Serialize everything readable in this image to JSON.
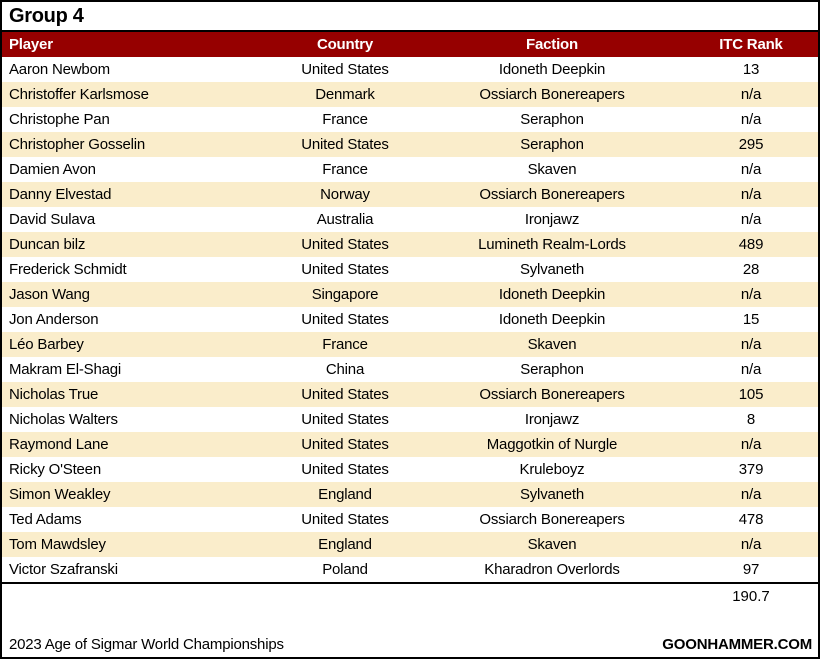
{
  "chart_data": {
    "type": "table",
    "title": "Group 4",
    "columns": [
      "Player",
      "Country",
      "Faction",
      "ITC Rank"
    ],
    "rows": [
      [
        "Aaron Newbom",
        "United States",
        "Idoneth Deepkin",
        "13"
      ],
      [
        "Christoffer Karlsmose",
        "Denmark",
        "Ossiarch Bonereapers",
        "n/a"
      ],
      [
        "Christophe Pan",
        "France",
        "Seraphon",
        "n/a"
      ],
      [
        "Christopher Gosselin",
        "United States",
        "Seraphon",
        "295"
      ],
      [
        "Damien Avon",
        "France",
        "Skaven",
        "n/a"
      ],
      [
        "Danny Elvestad",
        "Norway",
        "Ossiarch Bonereapers",
        "n/a"
      ],
      [
        "David Sulava",
        "Australia",
        "Ironjawz",
        "n/a"
      ],
      [
        "Duncan bilz",
        "United States",
        "Lumineth Realm-Lords",
        "489"
      ],
      [
        "Frederick Schmidt",
        "United States",
        "Sylvaneth",
        "28"
      ],
      [
        "Jason Wang",
        "Singapore",
        "Idoneth Deepkin",
        "n/a"
      ],
      [
        "Jon Anderson",
        "United States",
        "Idoneth Deepkin",
        "15"
      ],
      [
        "Léo Barbey",
        "France",
        "Skaven",
        "n/a"
      ],
      [
        "Makram El-Shagi",
        "China",
        "Seraphon",
        "n/a"
      ],
      [
        "Nicholas True",
        "United States",
        "Ossiarch Bonereapers",
        "105"
      ],
      [
        "Nicholas Walters",
        "United States",
        "Ironjawz",
        "8"
      ],
      [
        "Raymond Lane",
        "United States",
        "Maggotkin of Nurgle",
        "n/a"
      ],
      [
        "Ricky O'Steen",
        "United States",
        "Kruleboyz",
        "379"
      ],
      [
        "Simon Weakley",
        "England",
        "Sylvaneth",
        "n/a"
      ],
      [
        "Ted Adams",
        "United States",
        "Ossiarch Bonereapers",
        "478"
      ],
      [
        "Tom Mawdsley",
        "England",
        "Skaven",
        "n/a"
      ],
      [
        "Victor Szafranski",
        "Poland",
        "Kharadron Overlords",
        "97"
      ]
    ],
    "layout_hints": {
      "row_banding": "white/cream alternating",
      "rank_column_alignment": "center",
      "player_column_alignment": "left"
    }
  },
  "summary_value": "190.7",
  "footer": {
    "left": "2023 Age of Sigmar World Championships",
    "right": "GOONHAMMER.COM"
  },
  "colors": {
    "header_bg": "#960000",
    "header_text": "#FFFFFF",
    "row_alt_bg": "#FAEDCB",
    "border": "#000000"
  }
}
